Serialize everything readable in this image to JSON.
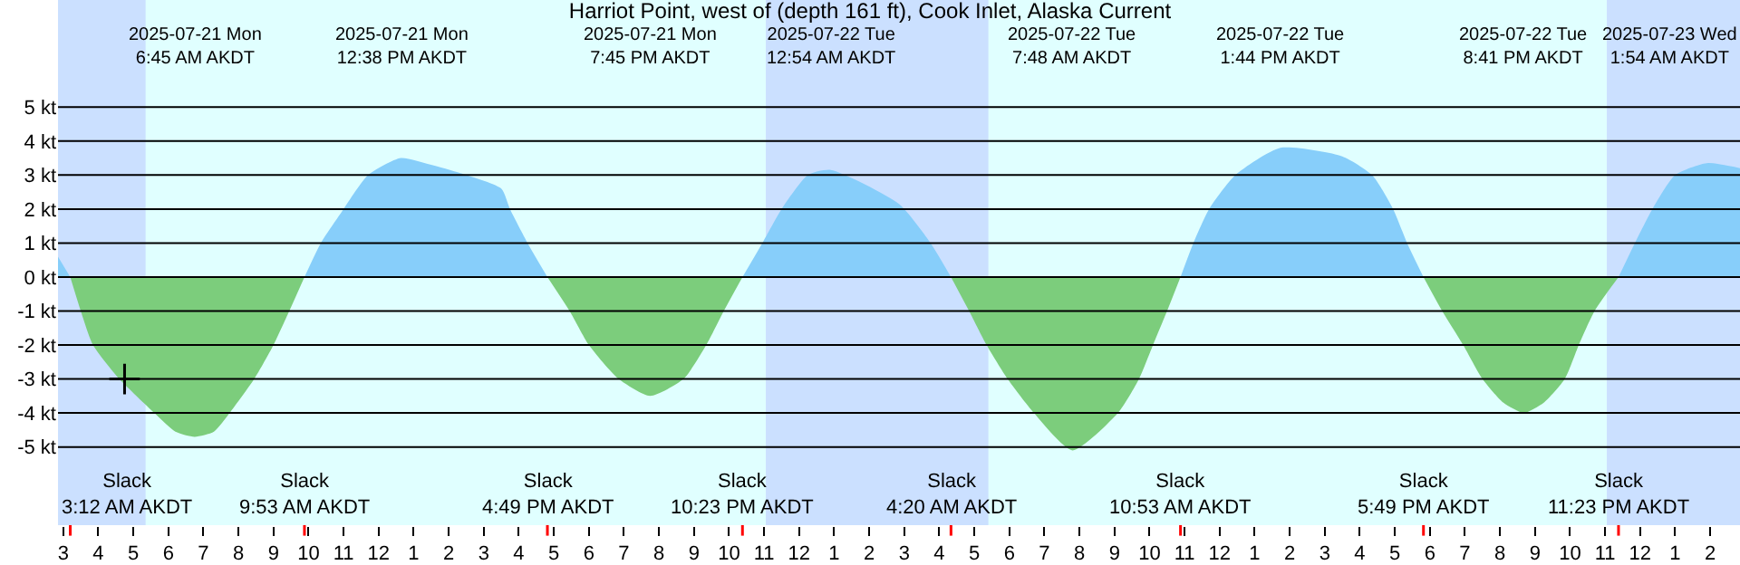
{
  "chart_data": {
    "type": "area",
    "title": "Harriot Point, west of (depth 161 ft), Cook Inlet, Alaska Current",
    "xlim": [
      "2025-07-21T02:51",
      "2025-07-23T02:51"
    ],
    "xticks": [
      {
        "value": "2025-07-21T03:00",
        "label": "3"
      },
      {
        "value": "2025-07-21T04:00",
        "label": "4"
      },
      {
        "value": "2025-07-21T05:00",
        "label": "5"
      },
      {
        "value": "2025-07-21T06:00",
        "label": "6"
      },
      {
        "value": "2025-07-21T07:00",
        "label": "7"
      },
      {
        "value": "2025-07-21T08:00",
        "label": "8"
      },
      {
        "value": "2025-07-21T09:00",
        "label": "9"
      },
      {
        "value": "2025-07-21T10:00",
        "label": "10"
      },
      {
        "value": "2025-07-21T11:00",
        "label": "11"
      },
      {
        "value": "2025-07-21T12:00",
        "label": "12"
      },
      {
        "value": "2025-07-21T13:00",
        "label": "1"
      },
      {
        "value": "2025-07-21T14:00",
        "label": "2"
      },
      {
        "value": "2025-07-21T15:00",
        "label": "3"
      },
      {
        "value": "2025-07-21T16:00",
        "label": "4"
      },
      {
        "value": "2025-07-21T17:00",
        "label": "5"
      },
      {
        "value": "2025-07-21T18:00",
        "label": "6"
      },
      {
        "value": "2025-07-21T19:00",
        "label": "7"
      },
      {
        "value": "2025-07-21T20:00",
        "label": "8"
      },
      {
        "value": "2025-07-21T21:00",
        "label": "9"
      },
      {
        "value": "2025-07-21T22:00",
        "label": "10"
      },
      {
        "value": "2025-07-21T23:00",
        "label": "11"
      },
      {
        "value": "2025-07-22T00:00",
        "label": "12"
      },
      {
        "value": "2025-07-22T01:00",
        "label": "1"
      },
      {
        "value": "2025-07-22T02:00",
        "label": "2"
      },
      {
        "value": "2025-07-22T03:00",
        "label": "3"
      },
      {
        "value": "2025-07-22T04:00",
        "label": "4"
      },
      {
        "value": "2025-07-22T05:00",
        "label": "5"
      },
      {
        "value": "2025-07-22T06:00",
        "label": "6"
      },
      {
        "value": "2025-07-22T07:00",
        "label": "7"
      },
      {
        "value": "2025-07-22T08:00",
        "label": "8"
      },
      {
        "value": "2025-07-22T09:00",
        "label": "9"
      },
      {
        "value": "2025-07-22T10:00",
        "label": "10"
      },
      {
        "value": "2025-07-22T11:00",
        "label": "11"
      },
      {
        "value": "2025-07-22T12:00",
        "label": "12"
      },
      {
        "value": "2025-07-22T13:00",
        "label": "1"
      },
      {
        "value": "2025-07-22T14:00",
        "label": "2"
      },
      {
        "value": "2025-07-22T15:00",
        "label": "3"
      },
      {
        "value": "2025-07-22T16:00",
        "label": "4"
      },
      {
        "value": "2025-07-22T17:00",
        "label": "5"
      },
      {
        "value": "2025-07-22T18:00",
        "label": "6"
      },
      {
        "value": "2025-07-22T19:00",
        "label": "7"
      },
      {
        "value": "2025-07-22T20:00",
        "label": "8"
      },
      {
        "value": "2025-07-22T21:00",
        "label": "9"
      },
      {
        "value": "2025-07-22T22:00",
        "label": "10"
      },
      {
        "value": "2025-07-22T23:00",
        "label": "11"
      },
      {
        "value": "2025-07-23T00:00",
        "label": "12"
      },
      {
        "value": "2025-07-23T01:00",
        "label": "1"
      },
      {
        "value": "2025-07-23T02:00",
        "label": "2"
      }
    ],
    "ylim": [
      -7.3,
      8.15
    ],
    "yticks": [
      {
        "value": 5,
        "label": "5 kt"
      },
      {
        "value": 4,
        "label": "4 kt"
      },
      {
        "value": 3,
        "label": "3 kt"
      },
      {
        "value": 2,
        "label": "2 kt"
      },
      {
        "value": 1,
        "label": "1 kt"
      },
      {
        "value": 0,
        "label": "0 kt"
      },
      {
        "value": -1,
        "label": "-1 kt"
      },
      {
        "value": -2,
        "label": "-2 kt"
      },
      {
        "value": -3,
        "label": "-3 kt"
      },
      {
        "value": -4,
        "label": "-4 kt"
      },
      {
        "value": -5,
        "label": "-5 kt"
      }
    ],
    "grid": "y",
    "bands": [
      {
        "axis": "x",
        "from": "2025-07-21T02:51",
        "to": "2025-07-21T05:21",
        "color": "#cbe0ff"
      },
      {
        "axis": "x",
        "from": "2025-07-21T23:03",
        "to": "2025-07-22T05:24",
        "color": "#cbe0ff"
      },
      {
        "axis": "x",
        "from": "2025-07-22T23:03",
        "to": "2025-07-23T02:51",
        "color": "#cbe0ff"
      }
    ],
    "series": [
      {
        "color": "#87cefa",
        "x": [
          "2025-07-21T02:51",
          "2025-07-21T03:12",
          "2025-07-21T06:30",
          "2025-07-21T09:53",
          "2025-07-21T10:21",
          "2025-07-21T11:00",
          "2025-07-21T11:42",
          "2025-07-21T12:38",
          "2025-07-21T13:30",
          "2025-07-21T14:30",
          "2025-07-21T15:30",
          "2025-07-21T15:45",
          "2025-07-21T16:15",
          "2025-07-21T16:49",
          "2025-07-21T19:42",
          "2025-07-21T22:23",
          "2025-07-21T22:57",
          "2025-07-21T23:30",
          "2025-07-22T00:15",
          "2025-07-22T00:54",
          "2025-07-22T02:51",
          "2025-07-22T03:45",
          "2025-07-22T04:20",
          "2025-07-22T07:36",
          "2025-07-22T10:53",
          "2025-07-22T11:15",
          "2025-07-22T11:42",
          "2025-07-22T12:27",
          "2025-07-22T13:44",
          "2025-07-22T15:30",
          "2025-07-22T16:21",
          "2025-07-22T16:57",
          "2025-07-22T17:21",
          "2025-07-22T17:49",
          "2025-07-22T20:36",
          "2025-07-22T23:23",
          "2025-07-22T23:51",
          "2025-07-23T00:21",
          "2025-07-23T01:00",
          "2025-07-23T01:54",
          "2025-07-23T02:51"
        ],
        "values": [
          0.6,
          0,
          null,
          0,
          1,
          2,
          3,
          3.5,
          3.3,
          3.0,
          2.6,
          2,
          1,
          0,
          null,
          0,
          1,
          2,
          3,
          3.15,
          2.15,
          1,
          0,
          null,
          0,
          1,
          2,
          3,
          3.8,
          3.55,
          3,
          2,
          1,
          0,
          null,
          0,
          1,
          2,
          3,
          3.35,
          3.2
        ]
      },
      {
        "color": "#7ccd7c",
        "x": [
          "2025-07-21T03:12",
          "2025-07-21T03:30",
          "2025-07-21T03:51",
          "2025-07-21T04:36",
          "2025-07-21T05:36",
          "2025-07-21T06:12",
          "2025-07-21T06:45",
          "2025-07-21T07:18",
          "2025-07-21T07:45",
          "2025-07-21T08:27",
          "2025-07-21T09:00",
          "2025-07-21T09:27",
          "2025-07-21T09:53",
          "2025-07-21T13:18",
          "2025-07-21T16:49",
          "2025-07-21T17:27",
          "2025-07-21T18:00",
          "2025-07-21T18:51",
          "2025-07-21T19:45",
          "2025-07-21T20:42",
          "2025-07-21T21:21",
          "2025-07-21T21:51",
          "2025-07-21T22:23",
          "2025-07-22T01:24",
          "2025-07-22T04:20",
          "2025-07-22T04:51",
          "2025-07-22T05:21",
          "2025-07-22T05:57",
          "2025-07-22T06:42",
          "2025-07-22T07:48",
          "2025-07-22T09:06",
          "2025-07-22T09:42",
          "2025-07-22T10:06",
          "2025-07-22T10:30",
          "2025-07-22T10:53",
          "2025-07-22T14:18",
          "2025-07-22T17:49",
          "2025-07-22T18:21",
          "2025-07-22T18:57",
          "2025-07-22T19:30",
          "2025-07-22T20:06",
          "2025-07-22T20:41",
          "2025-07-22T21:15",
          "2025-07-22T21:51",
          "2025-07-22T22:15",
          "2025-07-22T22:42",
          "2025-07-22T23:23"
        ],
        "values": [
          0,
          -1,
          -2,
          -3,
          -4,
          -4.55,
          -4.7,
          -4.55,
          -4,
          -3,
          -2,
          -1,
          0,
          null,
          0,
          -1,
          -2,
          -3,
          -3.5,
          -3,
          -2,
          -1,
          0,
          null,
          0,
          -1,
          -2,
          -3,
          -4,
          -5.1,
          -4,
          -3,
          -2,
          -1,
          0,
          null,
          0,
          -1,
          -2,
          -3,
          -3.7,
          -4,
          -3.7,
          -3,
          -2,
          -1,
          0
        ]
      },
      {
        "type": "scatter",
        "color": "#000000",
        "marker": "cross",
        "x": [
          "2025-07-21T04:45"
        ],
        "values": [
          -3.0
        ]
      }
    ],
    "annotations": [
      "2025-07-21 Mon\n6:45 AM AKDT",
      "2025-07-21 Mon\n12:38 PM AKDT",
      "2025-07-21 Mon\n7:45 PM AKDT",
      "2025-07-22 Tue\n12:54 AM AKDT",
      "2025-07-22 Tue\n7:48 AM AKDT",
      "2025-07-22 Tue\n1:44 PM AKDT",
      "2025-07-22 Tue\n8:41 PM AKDT",
      "2025-07-23 Wed\n1:54 AM AKDT",
      "Slack\n3:12 AM AKDT",
      "Slack\n9:53 AM AKDT",
      "Slack\n4:49 PM AKDT",
      "Slack\n10:23 PM AKDT",
      "Slack\n4:20 AM AKDT",
      "Slack\n10:53 AM AKDT",
      "Slack\n5:49 PM AKDT",
      "Slack\n11:23 PM AKDT"
    ]
  }
}
